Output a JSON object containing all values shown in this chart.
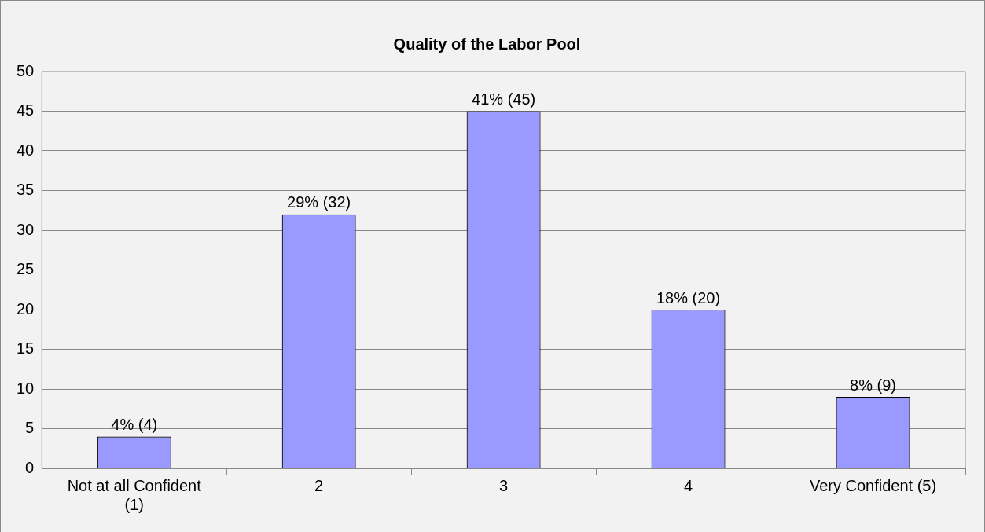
{
  "chart_data": {
    "type": "bar",
    "title": "Quality of the Labor Pool",
    "categories": [
      "Not at all Confident (1)",
      "2",
      "3",
      "4",
      "Very Confident (5)"
    ],
    "values": [
      4,
      32,
      45,
      20,
      9
    ],
    "value_labels": [
      "4% (4)",
      "29% (32)",
      "41% (45)",
      "18% (20)",
      "8% (9)"
    ],
    "color": "#9999ff",
    "ylim": [
      0,
      50
    ],
    "yticks": [
      0,
      5,
      10,
      15,
      20,
      25,
      30,
      35,
      40,
      45,
      50
    ],
    "grid": "y",
    "legend": false
  }
}
